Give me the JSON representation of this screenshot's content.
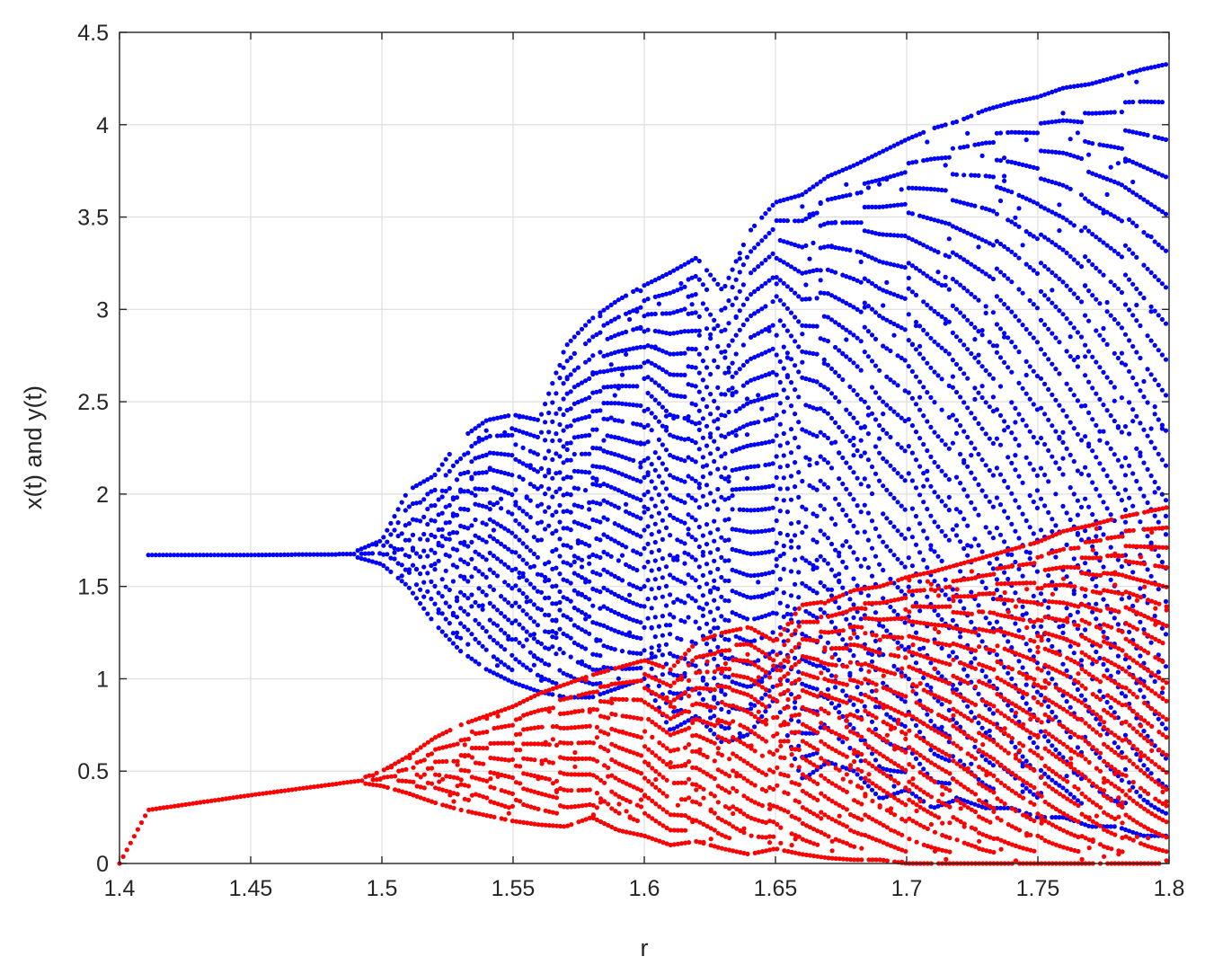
{
  "chart_data": {
    "type": "scatter",
    "title": "",
    "xlabel": "r",
    "ylabel": "x(t) and y(t)",
    "xlim": [
      1.4,
      1.8
    ],
    "ylim": [
      0,
      4.5
    ],
    "xticks": [
      1.4,
      1.45,
      1.5,
      1.55,
      1.6,
      1.65,
      1.7,
      1.75,
      1.8
    ],
    "xtick_labels": [
      "1.4",
      "1.45",
      "1.5",
      "1.55",
      "1.6",
      "1.65",
      "1.7",
      "1.75",
      "1.8"
    ],
    "yticks": [
      0,
      0.5,
      1,
      1.5,
      2,
      2.5,
      3,
      3.5,
      4,
      4.5
    ],
    "ytick_labels": [
      "0",
      "0.5",
      "1",
      "1.5",
      "2",
      "2.5",
      "3",
      "3.5",
      "4",
      "4.5"
    ],
    "grid": true,
    "legend": "none",
    "series": [
      {
        "color": "#0000ff",
        "description_values": {
          "r": [
            1.411,
            1.45,
            1.49,
            1.5,
            1.51,
            1.52,
            1.53,
            1.54,
            1.55,
            1.56,
            1.57,
            1.58,
            1.59,
            1.6,
            1.61,
            1.62,
            1.63,
            1.64,
            1.65,
            1.66,
            1.67,
            1.68,
            1.69,
            1.7,
            1.71,
            1.72,
            1.73,
            1.74,
            1.75,
            1.76,
            1.77,
            1.78,
            1.79,
            1.8
          ],
          "y_min": [
            1.67,
            1.67,
            1.66,
            1.62,
            1.5,
            1.3,
            1.15,
            1.05,
            0.98,
            0.93,
            0.9,
            0.9,
            0.95,
            1.0,
            0.72,
            0.8,
            0.65,
            0.7,
            0.9,
            0.45,
            0.55,
            0.5,
            0.35,
            0.4,
            0.3,
            0.35,
            0.3,
            0.3,
            0.25,
            0.25,
            0.2,
            0.2,
            0.15,
            0.15
          ],
          "y_max": [
            1.67,
            1.67,
            1.69,
            1.75,
            2.02,
            2.1,
            2.3,
            2.4,
            2.43,
            2.4,
            2.8,
            2.95,
            3.05,
            3.13,
            3.2,
            3.28,
            3.1,
            3.42,
            3.58,
            3.62,
            3.72,
            3.78,
            3.85,
            3.92,
            3.98,
            4.02,
            4.08,
            4.12,
            4.15,
            4.2,
            4.22,
            4.26,
            4.3,
            4.33
          ]
        }
      },
      {
        "color": "#ff0000",
        "description_values": {
          "r": [
            1.4,
            1.411,
            1.45,
            1.49,
            1.5,
            1.51,
            1.52,
            1.53,
            1.54,
            1.55,
            1.56,
            1.57,
            1.58,
            1.59,
            1.6,
            1.61,
            1.62,
            1.63,
            1.64,
            1.65,
            1.66,
            1.67,
            1.68,
            1.69,
            1.7,
            1.71,
            1.72,
            1.73,
            1.74,
            1.75,
            1.76,
            1.77,
            1.78,
            1.79,
            1.8
          ],
          "y_min": [
            0,
            0.29,
            0.37,
            0.44,
            0.42,
            0.38,
            0.33,
            0.29,
            0.26,
            0.23,
            0.21,
            0.2,
            0.25,
            0.18,
            0.15,
            0.1,
            0.12,
            0.08,
            0.05,
            0.08,
            0.05,
            0.03,
            0.02,
            0.02,
            0.0,
            0.0,
            0.0,
            0.0,
            0.0,
            0.0,
            0.0,
            0.0,
            0.0,
            0.0,
            0.0
          ],
          "y_max": [
            0,
            0.29,
            0.37,
            0.45,
            0.5,
            0.58,
            0.68,
            0.75,
            0.8,
            0.85,
            0.92,
            0.97,
            1.02,
            1.06,
            1.1,
            1.05,
            1.2,
            1.25,
            1.28,
            1.2,
            1.4,
            1.42,
            1.48,
            1.5,
            1.55,
            1.58,
            1.62,
            1.66,
            1.7,
            1.74,
            1.8,
            1.83,
            1.87,
            1.9,
            1.93
          ]
        }
      }
    ]
  }
}
